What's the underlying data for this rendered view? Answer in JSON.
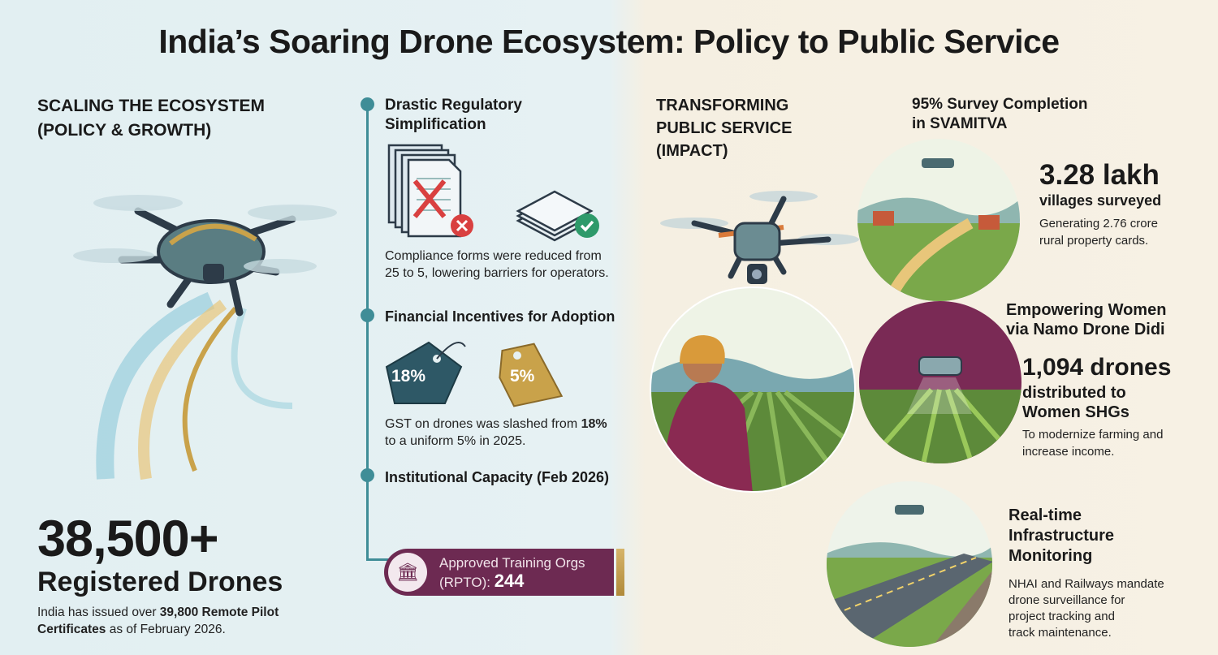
{
  "title": "India’s Soaring Drone Ecosystem: Policy to Public Service",
  "left": {
    "section_title_line1": "SCALING THE ECOSYSTEM",
    "section_title_line2": "(POLICY & GROWTH)",
    "stat_value": "38,500+",
    "stat_label": "Registered Drones",
    "note_pre": "India has issued over ",
    "note_bold": "39,800 Remote Pilot Certificates",
    "note_post": " as of February 2026."
  },
  "timeline": {
    "items": [
      {
        "heading_line1": "Drastic Regulatory",
        "heading_line2": "Simplification",
        "text_line1": "Compliance forms were reduced from",
        "text_line2": "25 to 5, lowering barriers for operators."
      },
      {
        "heading": "Financial Incentives for Adoption",
        "tag_old": "18%",
        "tag_new": "5%",
        "text_pre": "GST on drones was slashed from ",
        "text_bold": "18%",
        "text_post": "to a uniform 5% in 2025."
      },
      {
        "heading": "Institutional Capacity (Feb 2026)",
        "badge_line1": "Approved Training Orgs",
        "badge_prefix": "(RPTO): ",
        "badge_value": "244"
      }
    ]
  },
  "right": {
    "section_title_line1": "TRANSFORMING",
    "section_title_line2": "PUBLIC SERVICE",
    "section_title_line3": "(IMPACT)",
    "svamitva": {
      "heading_line1": "95% Survey Completion",
      "heading_line2": "in SVAMITVA",
      "stat": "3.28 lakh",
      "stat_label": "villages surveyed",
      "text_line1": "Generating 2.76 crore",
      "text_line2": "rural property cards."
    },
    "women": {
      "heading_line1": "Empowering Women",
      "heading_line2": "via Namo Drone Didi",
      "stat": "1,094 drones",
      "stat_label_line1": "distributed to",
      "stat_label_line2": "Women SHGs",
      "text_line1": "To modernize farming and",
      "text_line2": "increase income."
    },
    "infra": {
      "heading_line1": "Real-time",
      "heading_line2": "Infrastructure",
      "heading_line3": "Monitoring",
      "text_line1": "NHAI and Railways mandate",
      "text_line2": "drone surveillance for",
      "text_line3": "project tracking and",
      "text_line4": "track maintenance."
    }
  },
  "colors": {
    "teal": "#3f8d97",
    "purple": "#6d2a52",
    "gold": "#c9a24a",
    "tag_dark": "#2e5866",
    "red": "#d94040",
    "green": "#2e9a6a"
  }
}
